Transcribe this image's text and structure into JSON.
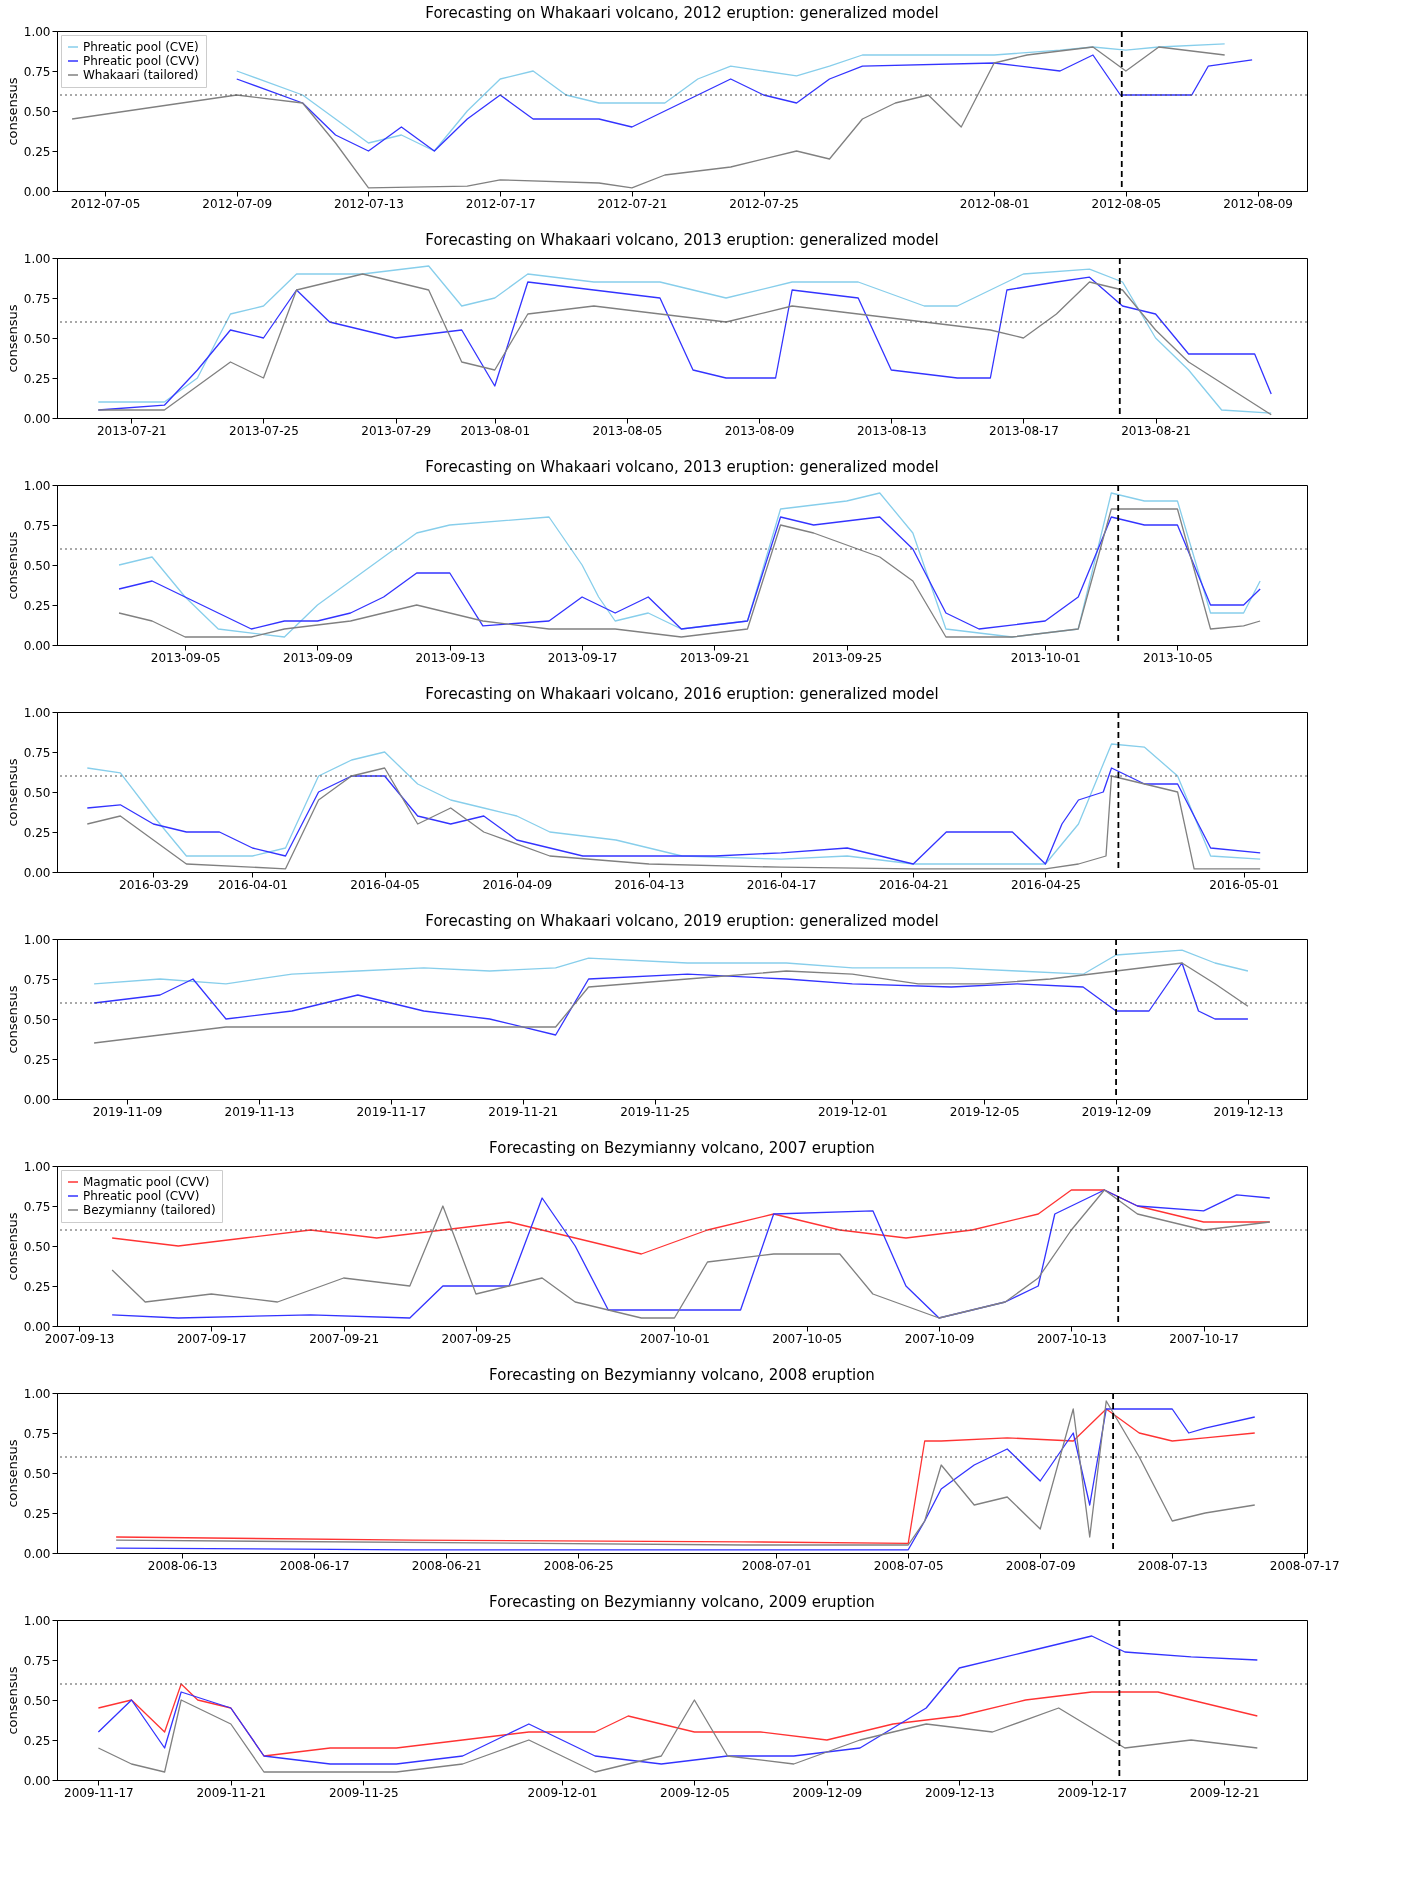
{
  "chart_data": [
    {
      "type": "line",
      "title": "Forecasting on Whakaari volcano, 2012 eruption: generalized model",
      "ylabel": "consensus",
      "xlim": [
        "2012-07-03T13:00",
        "2012-08-10T12:00"
      ],
      "xticks": [
        "2012-07-05",
        "2012-07-09",
        "2012-07-13",
        "2012-07-17",
        "2012-07-21",
        "2012-07-25",
        "2012-08-01",
        "2012-08-05",
        "2012-08-09"
      ],
      "ylim": [
        0,
        1
      ],
      "yticks": [
        {
          "value": 0,
          "label": "0.00"
        },
        {
          "value": 0.25,
          "label": "0.25"
        },
        {
          "value": 0.5,
          "label": "0.50"
        },
        {
          "value": 0.75,
          "label": "0.75"
        },
        {
          "value": 1,
          "label": "1.00"
        }
      ],
      "legend": "top left",
      "grid": false,
      "line_style": "solid",
      "ref_lines": [
        {
          "axis": "y",
          "value": 0.6,
          "color": "#555555",
          "line_style": "dotted"
        },
        {
          "axis": "x",
          "value": "2012-08-04T21:00",
          "color": "#000000",
          "line_style": "dashed"
        }
      ],
      "series": [
        {
          "name": "Phreatic pool (CVE)",
          "color": "#87ceeb",
          "x": [
            "2012-07-09",
            "2012-07-11",
            "2012-07-13",
            "2012-07-14",
            "2012-07-15",
            "2012-07-16",
            "2012-07-17",
            "2012-07-18",
            "2012-07-19",
            "2012-07-20",
            "2012-07-22",
            "2012-07-23",
            "2012-07-24",
            "2012-07-26",
            "2012-07-27",
            "2012-07-28",
            "2012-08-01",
            "2012-08-03",
            "2012-08-04",
            "2012-08-05",
            "2012-08-06",
            "2012-08-08"
          ],
          "values": [
            0.75,
            0.6,
            0.3,
            0.35,
            0.25,
            0.5,
            0.7,
            0.75,
            0.6,
            0.55,
            0.55,
            0.7,
            0.78,
            0.72,
            0.78,
            0.85,
            0.85,
            0.88,
            0.9,
            0.88,
            0.9,
            0.92
          ]
        },
        {
          "name": "Phreatic pool (CVV)",
          "color": "#3333ff",
          "x": [
            "2012-07-09",
            "2012-07-11",
            "2012-07-12",
            "2012-07-13",
            "2012-07-14",
            "2012-07-15",
            "2012-07-16",
            "2012-07-17",
            "2012-07-18",
            "2012-07-20",
            "2012-07-21",
            "2012-07-23",
            "2012-07-24",
            "2012-07-25",
            "2012-07-26",
            "2012-07-27",
            "2012-07-28",
            "2012-08-01",
            "2012-08-03",
            "2012-08-04",
            "2012-08-04T20:00",
            "2012-08-07",
            "2012-08-07T12:00",
            "2012-08-08T20:00"
          ],
          "values": [
            0.7,
            0.55,
            0.35,
            0.25,
            0.4,
            0.25,
            0.45,
            0.6,
            0.45,
            0.45,
            0.4,
            0.6,
            0.7,
            0.6,
            0.55,
            0.7,
            0.78,
            0.8,
            0.75,
            0.85,
            0.6,
            0.6,
            0.78,
            0.82
          ]
        },
        {
          "name": "Whakaari (tailored)",
          "color": "#808080",
          "x": [
            "2012-07-04",
            "2012-07-09",
            "2012-07-11",
            "2012-07-12",
            "2012-07-13",
            "2012-07-16",
            "2012-07-17",
            "2012-07-20",
            "2012-07-21",
            "2012-07-22",
            "2012-07-24",
            "2012-07-26",
            "2012-07-27",
            "2012-07-28",
            "2012-07-29",
            "2012-07-30",
            "2012-07-31",
            "2012-08-01",
            "2012-08-02",
            "2012-08-04",
            "2012-08-05",
            "2012-08-06",
            "2012-08-08"
          ],
          "values": [
            0.45,
            0.6,
            0.55,
            0.3,
            0.02,
            0.03,
            0.07,
            0.05,
            0.02,
            0.1,
            0.15,
            0.25,
            0.2,
            0.45,
            0.55,
            0.6,
            0.4,
            0.8,
            0.85,
            0.9,
            0.75,
            0.9,
            0.85
          ]
        }
      ]
    },
    {
      "type": "line",
      "title": "Forecasting on Whakaari volcano, 2013 eruption: generalized model",
      "ylabel": "consensus",
      "xlim": [
        "2013-07-18T18:00",
        "2013-08-25T14:00"
      ],
      "xticks": [
        "2013-07-21",
        "2013-07-25",
        "2013-07-29",
        "2013-08-01",
        "2013-08-05",
        "2013-08-09",
        "2013-08-13",
        "2013-08-17",
        "2013-08-21"
      ],
      "ylim": [
        0,
        1
      ],
      "yticks": [
        {
          "value": 0,
          "label": "0.00"
        },
        {
          "value": 0.25,
          "label": "0.25"
        },
        {
          "value": 0.5,
          "label": "0.50"
        },
        {
          "value": 0.75,
          "label": "0.75"
        },
        {
          "value": 1,
          "label": "1.00"
        }
      ],
      "grid": false,
      "line_style": "solid",
      "ref_lines": [
        {
          "axis": "y",
          "value": 0.6,
          "color": "#555555",
          "line_style": "dotted"
        },
        {
          "axis": "x",
          "value": "2013-08-19T22:00",
          "color": "#000000",
          "line_style": "dashed"
        }
      ],
      "series": [
        {
          "color": "#87ceeb",
          "x": [
            "2013-07-20",
            "2013-07-22",
            "2013-07-23",
            "2013-07-24",
            "2013-07-25",
            "2013-07-26",
            "2013-07-28",
            "2013-07-30",
            "2013-07-31",
            "2013-08-01",
            "2013-08-02",
            "2013-08-04",
            "2013-08-06",
            "2013-08-08",
            "2013-08-10",
            "2013-08-12",
            "2013-08-14",
            "2013-08-15",
            "2013-08-17",
            "2013-08-19",
            "2013-08-20",
            "2013-08-21",
            "2013-08-22",
            "2013-08-23",
            "2013-08-24T12:00"
          ],
          "values": [
            0.1,
            0.1,
            0.25,
            0.65,
            0.7,
            0.9,
            0.9,
            0.95,
            0.7,
            0.75,
            0.9,
            0.85,
            0.85,
            0.75,
            0.85,
            0.85,
            0.7,
            0.7,
            0.9,
            0.93,
            0.85,
            0.5,
            0.3,
            0.05,
            0.03
          ]
        },
        {
          "color": "#3333ff",
          "x": [
            "2013-07-20",
            "2013-07-22",
            "2013-07-23",
            "2013-07-24",
            "2013-07-25",
            "2013-07-26",
            "2013-07-27",
            "2013-07-29",
            "2013-07-31",
            "2013-08-01",
            "2013-08-02",
            "2013-08-04",
            "2013-08-06",
            "2013-08-07",
            "2013-08-08",
            "2013-08-09T12:00",
            "2013-08-10",
            "2013-08-12",
            "2013-08-13",
            "2013-08-15",
            "2013-08-16",
            "2013-08-16T12:00",
            "2013-08-18",
            "2013-08-19",
            "2013-08-20",
            "2013-08-21",
            "2013-08-22",
            "2013-08-24",
            "2013-08-24T12:00"
          ],
          "values": [
            0.05,
            0.08,
            0.3,
            0.55,
            0.5,
            0.8,
            0.6,
            0.5,
            0.55,
            0.2,
            0.85,
            0.8,
            0.75,
            0.3,
            0.25,
            0.25,
            0.8,
            0.75,
            0.3,
            0.25,
            0.25,
            0.8,
            0.85,
            0.88,
            0.7,
            0.65,
            0.4,
            0.4,
            0.15
          ]
        },
        {
          "color": "#808080",
          "x": [
            "2013-07-20",
            "2013-07-22",
            "2013-07-23",
            "2013-07-24",
            "2013-07-25",
            "2013-07-26",
            "2013-07-28",
            "2013-07-30",
            "2013-07-31",
            "2013-08-01",
            "2013-08-02",
            "2013-08-04",
            "2013-08-06",
            "2013-08-08",
            "2013-08-10",
            "2013-08-12",
            "2013-08-14",
            "2013-08-16",
            "2013-08-17",
            "2013-08-18",
            "2013-08-19",
            "2013-08-20",
            "2013-08-21",
            "2013-08-22",
            "2013-08-24T12:00"
          ],
          "values": [
            0.05,
            0.05,
            0.2,
            0.35,
            0.25,
            0.8,
            0.9,
            0.8,
            0.35,
            0.3,
            0.65,
            0.7,
            0.65,
            0.6,
            0.7,
            0.65,
            0.6,
            0.55,
            0.5,
            0.65,
            0.85,
            0.8,
            0.55,
            0.35,
            0.02
          ]
        }
      ]
    },
    {
      "type": "line",
      "title": "Forecasting on Whakaari volcano, 2013 eruption: generalized model",
      "ylabel": "consensus",
      "xlim": [
        "2013-09-01T03:00",
        "2013-10-08T22:00"
      ],
      "xticks": [
        "2013-09-05",
        "2013-09-09",
        "2013-09-13",
        "2013-09-17",
        "2013-09-21",
        "2013-09-25",
        "2013-10-01",
        "2013-10-05"
      ],
      "ylim": [
        0,
        1
      ],
      "yticks": [
        {
          "value": 0,
          "label": "0.00"
        },
        {
          "value": 0.25,
          "label": "0.25"
        },
        {
          "value": 0.5,
          "label": "0.50"
        },
        {
          "value": 0.75,
          "label": "0.75"
        },
        {
          "value": 1,
          "label": "1.00"
        }
      ],
      "grid": false,
      "line_style": "solid",
      "ref_lines": [
        {
          "axis": "y",
          "value": 0.6,
          "color": "#555555",
          "line_style": "dotted"
        },
        {
          "axis": "x",
          "value": "2013-10-03T05:00",
          "color": "#000000",
          "line_style": "dashed"
        }
      ],
      "series": [
        {
          "color": "#87ceeb",
          "x": [
            "2013-09-03",
            "2013-09-04",
            "2013-09-05",
            "2013-09-06",
            "2013-09-08",
            "2013-09-09",
            "2013-09-10",
            "2013-09-11",
            "2013-09-12",
            "2013-09-13",
            "2013-09-16",
            "2013-09-17",
            "2013-09-17T12:00",
            "2013-09-18",
            "2013-09-19",
            "2013-09-20",
            "2013-09-22",
            "2013-09-23",
            "2013-09-25",
            "2013-09-26",
            "2013-09-27",
            "2013-09-28",
            "2013-09-30",
            "2013-10-02",
            "2013-10-03",
            "2013-10-04",
            "2013-10-05",
            "2013-10-06",
            "2013-10-07",
            "2013-10-07T12:00"
          ],
          "values": [
            0.5,
            0.55,
            0.3,
            0.1,
            0.05,
            0.25,
            0.4,
            0.55,
            0.7,
            0.75,
            0.8,
            0.5,
            0.3,
            0.15,
            0.2,
            0.1,
            0.15,
            0.85,
            0.9,
            0.95,
            0.7,
            0.1,
            0.05,
            0.1,
            0.95,
            0.9,
            0.9,
            0.2,
            0.2,
            0.4
          ]
        },
        {
          "color": "#3333ff",
          "x": [
            "2013-09-03",
            "2013-09-04",
            "2013-09-05",
            "2013-09-06",
            "2013-09-07",
            "2013-09-08",
            "2013-09-09",
            "2013-09-10",
            "2013-09-11",
            "2013-09-12",
            "2013-09-13",
            "2013-09-14",
            "2013-09-16",
            "2013-09-17",
            "2013-09-18",
            "2013-09-19",
            "2013-09-20",
            "2013-09-22",
            "2013-09-23",
            "2013-09-24",
            "2013-09-26",
            "2013-09-27",
            "2013-09-28",
            "2013-09-29",
            "2013-10-01",
            "2013-10-02",
            "2013-10-03",
            "2013-10-04",
            "2013-10-05",
            "2013-10-06",
            "2013-10-07",
            "2013-10-07T12:00"
          ],
          "values": [
            0.35,
            0.4,
            0.3,
            0.2,
            0.1,
            0.15,
            0.15,
            0.2,
            0.3,
            0.45,
            0.45,
            0.12,
            0.15,
            0.3,
            0.2,
            0.3,
            0.1,
            0.15,
            0.8,
            0.75,
            0.8,
            0.6,
            0.2,
            0.1,
            0.15,
            0.3,
            0.8,
            0.75,
            0.75,
            0.25,
            0.25,
            0.35
          ]
        },
        {
          "color": "#808080",
          "x": [
            "2013-09-03",
            "2013-09-04",
            "2013-09-05",
            "2013-09-07",
            "2013-09-08",
            "2013-09-10",
            "2013-09-12",
            "2013-09-14",
            "2013-09-16",
            "2013-09-18",
            "2013-09-20",
            "2013-09-22",
            "2013-09-23",
            "2013-09-24",
            "2013-09-26",
            "2013-09-27",
            "2013-09-28",
            "2013-09-30",
            "2013-10-02",
            "2013-10-03",
            "2013-10-04",
            "2013-10-05",
            "2013-10-06",
            "2013-10-07",
            "2013-10-07T12:00"
          ],
          "values": [
            0.2,
            0.15,
            0.05,
            0.05,
            0.1,
            0.15,
            0.25,
            0.15,
            0.1,
            0.1,
            0.05,
            0.1,
            0.75,
            0.7,
            0.55,
            0.4,
            0.05,
            0.05,
            0.1,
            0.85,
            0.85,
            0.85,
            0.1,
            0.12,
            0.15
          ]
        }
      ]
    },
    {
      "type": "line",
      "title": "Forecasting on Whakaari volcano, 2016 eruption: generalized model",
      "ylabel": "consensus",
      "xlim": [
        "2016-03-26T02:00",
        "2016-05-02T22:00"
      ],
      "xticks": [
        "2016-03-29",
        "2016-04-01",
        "2016-04-05",
        "2016-04-09",
        "2016-04-13",
        "2016-04-17",
        "2016-04-21",
        "2016-04-25",
        "2016-05-01"
      ],
      "ylim": [
        0,
        1
      ],
      "yticks": [
        {
          "value": 0,
          "label": "0.00"
        },
        {
          "value": 0.25,
          "label": "0.25"
        },
        {
          "value": 0.5,
          "label": "0.50"
        },
        {
          "value": 0.75,
          "label": "0.75"
        },
        {
          "value": 1,
          "label": "1.00"
        }
      ],
      "grid": false,
      "line_style": "solid",
      "ref_lines": [
        {
          "axis": "y",
          "value": 0.6,
          "color": "#555555",
          "line_style": "dotted"
        },
        {
          "axis": "x",
          "value": "2016-04-27T05:00",
          "color": "#000000",
          "line_style": "dashed"
        }
      ],
      "series": [
        {
          "color": "#87ceeb",
          "x": [
            "2016-03-27",
            "2016-03-28",
            "2016-03-29",
            "2016-03-30",
            "2016-04-01",
            "2016-04-02",
            "2016-04-03",
            "2016-04-04",
            "2016-04-05",
            "2016-04-06",
            "2016-04-07",
            "2016-04-08",
            "2016-04-09",
            "2016-04-10",
            "2016-04-12",
            "2016-04-14",
            "2016-04-17",
            "2016-04-19",
            "2016-04-21",
            "2016-04-23",
            "2016-04-25",
            "2016-04-26",
            "2016-04-26T12:00",
            "2016-04-27",
            "2016-04-28",
            "2016-04-29",
            "2016-04-30",
            "2016-05-01T12:00"
          ],
          "values": [
            0.65,
            0.62,
            0.35,
            0.1,
            0.1,
            0.15,
            0.6,
            0.7,
            0.75,
            0.55,
            0.45,
            0.4,
            0.35,
            0.25,
            0.2,
            0.1,
            0.08,
            0.1,
            0.05,
            0.05,
            0.05,
            0.3,
            0.55,
            0.8,
            0.78,
            0.6,
            0.1,
            0.08
          ]
        },
        {
          "color": "#3333ff",
          "x": [
            "2016-03-27",
            "2016-03-28",
            "2016-03-29",
            "2016-03-30",
            "2016-03-31",
            "2016-04-01",
            "2016-04-02",
            "2016-04-03",
            "2016-04-04",
            "2016-04-05",
            "2016-04-06",
            "2016-04-07",
            "2016-04-08",
            "2016-04-09",
            "2016-04-11",
            "2016-04-13",
            "2016-04-15",
            "2016-04-17",
            "2016-04-19",
            "2016-04-21",
            "2016-04-22",
            "2016-04-24",
            "2016-04-25",
            "2016-04-25T12:00",
            "2016-04-26",
            "2016-04-26T18:00",
            "2016-04-27",
            "2016-04-28",
            "2016-04-29",
            "2016-04-30",
            "2016-05-01T12:00"
          ],
          "values": [
            0.4,
            0.42,
            0.3,
            0.25,
            0.25,
            0.15,
            0.1,
            0.5,
            0.6,
            0.6,
            0.35,
            0.3,
            0.35,
            0.2,
            0.1,
            0.1,
            0.1,
            0.12,
            0.15,
            0.05,
            0.25,
            0.25,
            0.05,
            0.3,
            0.45,
            0.5,
            0.65,
            0.55,
            0.55,
            0.15,
            0.12
          ]
        },
        {
          "color": "#808080",
          "x": [
            "2016-03-27",
            "2016-03-28",
            "2016-03-29",
            "2016-03-30",
            "2016-04-02",
            "2016-04-03",
            "2016-04-04",
            "2016-04-05",
            "2016-04-06",
            "2016-04-07",
            "2016-04-08",
            "2016-04-10",
            "2016-04-13",
            "2016-04-17",
            "2016-04-21",
            "2016-04-25",
            "2016-04-26",
            "2016-04-26T20:00",
            "2016-04-27",
            "2016-04-28",
            "2016-04-29",
            "2016-04-29T12:00",
            "2016-05-01T12:00"
          ],
          "values": [
            0.3,
            0.35,
            0.2,
            0.05,
            0.02,
            0.45,
            0.6,
            0.65,
            0.3,
            0.4,
            0.25,
            0.1,
            0.05,
            0.03,
            0.02,
            0.02,
            0.05,
            0.1,
            0.6,
            0.55,
            0.5,
            0.02,
            0.02
          ]
        }
      ]
    },
    {
      "type": "line",
      "title": "Forecasting on Whakaari volcano, 2019 eruption: generalized model",
      "ylabel": "consensus",
      "xlim": [
        "2019-11-06T21:00",
        "2019-12-14T19:00"
      ],
      "xticks": [
        "2019-11-09",
        "2019-11-13",
        "2019-11-17",
        "2019-11-21",
        "2019-11-25",
        "2019-12-01",
        "2019-12-05",
        "2019-12-09",
        "2019-12-13"
      ],
      "ylim": [
        0,
        1
      ],
      "yticks": [
        {
          "value": 0,
          "label": "0.00"
        },
        {
          "value": 0.25,
          "label": "0.25"
        },
        {
          "value": 0.5,
          "label": "0.50"
        },
        {
          "value": 0.75,
          "label": "0.75"
        },
        {
          "value": 1,
          "label": "1.00"
        }
      ],
      "grid": false,
      "line_style": "solid",
      "ref_lines": [
        {
          "axis": "y",
          "value": 0.6,
          "color": "#555555",
          "line_style": "dotted"
        },
        {
          "axis": "x",
          "value": "2019-12-09",
          "color": "#000000",
          "line_style": "dashed"
        }
      ],
      "series": [
        {
          "color": "#87ceeb",
          "x": [
            "2019-11-08",
            "2019-11-10",
            "2019-11-12",
            "2019-11-14",
            "2019-11-16",
            "2019-11-18",
            "2019-11-20",
            "2019-11-22",
            "2019-11-23",
            "2019-11-26",
            "2019-11-29",
            "2019-12-01",
            "2019-12-04",
            "2019-12-06",
            "2019-12-08",
            "2019-12-09",
            "2019-12-11",
            "2019-12-12",
            "2019-12-13"
          ],
          "values": [
            0.72,
            0.75,
            0.72,
            0.78,
            0.8,
            0.82,
            0.8,
            0.82,
            0.88,
            0.85,
            0.85,
            0.82,
            0.82,
            0.8,
            0.78,
            0.9,
            0.93,
            0.85,
            0.8
          ]
        },
        {
          "color": "#3333ff",
          "x": [
            "2019-11-08",
            "2019-11-10",
            "2019-11-11",
            "2019-11-12",
            "2019-11-14",
            "2019-11-16",
            "2019-11-18",
            "2019-11-20",
            "2019-11-22",
            "2019-11-23",
            "2019-11-26",
            "2019-11-29",
            "2019-12-01",
            "2019-12-04",
            "2019-12-06",
            "2019-12-08",
            "2019-12-09",
            "2019-12-10",
            "2019-12-11",
            "2019-12-11T12:00",
            "2019-12-12",
            "2019-12-13"
          ],
          "values": [
            0.6,
            0.65,
            0.75,
            0.5,
            0.55,
            0.65,
            0.55,
            0.5,
            0.4,
            0.75,
            0.78,
            0.75,
            0.72,
            0.7,
            0.72,
            0.7,
            0.55,
            0.55,
            0.85,
            0.55,
            0.5,
            0.5
          ]
        },
        {
          "color": "#808080",
          "x": [
            "2019-11-08",
            "2019-11-10",
            "2019-11-12",
            "2019-11-14",
            "2019-11-16",
            "2019-11-18",
            "2019-11-20",
            "2019-11-22",
            "2019-11-23",
            "2019-11-26",
            "2019-11-29",
            "2019-12-01",
            "2019-12-03",
            "2019-12-05",
            "2019-12-07",
            "2019-12-09",
            "2019-12-11",
            "2019-12-12",
            "2019-12-13"
          ],
          "values": [
            0.35,
            0.4,
            0.45,
            0.45,
            0.45,
            0.45,
            0.45,
            0.45,
            0.7,
            0.75,
            0.8,
            0.78,
            0.72,
            0.72,
            0.75,
            0.8,
            0.85,
            0.72,
            0.58
          ]
        }
      ]
    },
    {
      "type": "line",
      "title": "Forecasting on Bezymianny volcano, 2007 eruption",
      "ylabel": "consensus",
      "xlim": [
        "2007-09-12T08:00",
        "2007-10-20T03:00"
      ],
      "xticks": [
        "2007-09-13",
        "2007-09-17",
        "2007-09-21",
        "2007-09-25",
        "2007-10-01",
        "2007-10-05",
        "2007-10-09",
        "2007-10-13",
        "2007-10-17"
      ],
      "ylim": [
        0,
        1
      ],
      "yticks": [
        {
          "value": 0,
          "label": "0.00"
        },
        {
          "value": 0.25,
          "label": "0.25"
        },
        {
          "value": 0.5,
          "label": "0.50"
        },
        {
          "value": 0.75,
          "label": "0.75"
        },
        {
          "value": 1,
          "label": "1.00"
        }
      ],
      "legend": "top left",
      "grid": false,
      "line_style": "solid",
      "ref_lines": [
        {
          "axis": "y",
          "value": 0.6,
          "color": "#555555",
          "line_style": "dotted"
        },
        {
          "axis": "x",
          "value": "2007-10-14T10:00",
          "color": "#000000",
          "line_style": "dashed"
        }
      ],
      "series": [
        {
          "name": "Magmatic pool (CVV)",
          "color": "#ff3333",
          "x": [
            "2007-09-14",
            "2007-09-16",
            "2007-09-18",
            "2007-09-20",
            "2007-09-22",
            "2007-09-24",
            "2007-09-26",
            "2007-09-28",
            "2007-09-30",
            "2007-10-02",
            "2007-10-04",
            "2007-10-06",
            "2007-10-08",
            "2007-10-10",
            "2007-10-12",
            "2007-10-13",
            "2007-10-14",
            "2007-10-15",
            "2007-10-17",
            "2007-10-19"
          ],
          "values": [
            0.55,
            0.5,
            0.55,
            0.6,
            0.55,
            0.6,
            0.65,
            0.55,
            0.45,
            0.6,
            0.7,
            0.6,
            0.55,
            0.6,
            0.7,
            0.85,
            0.85,
            0.75,
            0.65,
            0.65
          ]
        },
        {
          "name": "Phreatic pool (CVV)",
          "color": "#3333ff",
          "x": [
            "2007-09-14",
            "2007-09-16",
            "2007-09-20",
            "2007-09-23",
            "2007-09-24",
            "2007-09-26",
            "2007-09-27",
            "2007-09-28",
            "2007-09-29",
            "2007-10-01",
            "2007-10-03",
            "2007-10-04",
            "2007-10-07",
            "2007-10-08",
            "2007-10-09",
            "2007-10-11",
            "2007-10-12",
            "2007-10-12T12:00",
            "2007-10-14",
            "2007-10-15",
            "2007-10-17",
            "2007-10-18",
            "2007-10-19"
          ],
          "values": [
            0.07,
            0.05,
            0.07,
            0.05,
            0.25,
            0.25,
            0.8,
            0.5,
            0.1,
            0.1,
            0.1,
            0.7,
            0.72,
            0.25,
            0.05,
            0.15,
            0.25,
            0.7,
            0.85,
            0.75,
            0.72,
            0.82,
            0.8
          ]
        },
        {
          "name": "Bezymianny (tailored)",
          "color": "#808080",
          "x": [
            "2007-09-14",
            "2007-09-15",
            "2007-09-17",
            "2007-09-19",
            "2007-09-21",
            "2007-09-23",
            "2007-09-24",
            "2007-09-25",
            "2007-09-27",
            "2007-09-28",
            "2007-09-30",
            "2007-10-01",
            "2007-10-02",
            "2007-10-04",
            "2007-10-06",
            "2007-10-07",
            "2007-10-09",
            "2007-10-11",
            "2007-10-12",
            "2007-10-13",
            "2007-10-14",
            "2007-10-15",
            "2007-10-17",
            "2007-10-19"
          ],
          "values": [
            0.35,
            0.15,
            0.2,
            0.15,
            0.3,
            0.25,
            0.75,
            0.2,
            0.3,
            0.15,
            0.05,
            0.05,
            0.4,
            0.45,
            0.45,
            0.2,
            0.05,
            0.15,
            0.3,
            0.6,
            0.85,
            0.7,
            0.6,
            0.65
          ]
        }
      ]
    },
    {
      "type": "line",
      "title": "Forecasting on Bezymianny volcano, 2008 eruption",
      "ylabel": "consensus",
      "xlim": [
        "2008-06-09T05:00",
        "2008-07-17T02:00"
      ],
      "xticks": [
        "2008-06-13",
        "2008-06-17",
        "2008-06-21",
        "2008-06-25",
        "2008-07-01",
        "2008-07-05",
        "2008-07-09",
        "2008-07-13",
        "2008-07-17"
      ],
      "ylim": [
        0,
        1
      ],
      "yticks": [
        {
          "value": 0,
          "label": "0.00"
        },
        {
          "value": 0.25,
          "label": "0.25"
        },
        {
          "value": 0.5,
          "label": "0.50"
        },
        {
          "value": 0.75,
          "label": "0.75"
        },
        {
          "value": 1,
          "label": "1.00"
        }
      ],
      "grid": false,
      "line_style": "solid",
      "ref_lines": [
        {
          "axis": "y",
          "value": 0.6,
          "color": "#555555",
          "line_style": "dotted"
        },
        {
          "axis": "x",
          "value": "2008-07-11T05:00",
          "color": "#000000",
          "line_style": "dashed"
        }
      ],
      "series": [
        {
          "color": "#ff3333",
          "x": [
            "2008-06-11",
            "2008-06-20",
            "2008-06-30",
            "2008-07-05",
            "2008-07-05T12:00",
            "2008-07-06",
            "2008-07-08",
            "2008-07-10",
            "2008-07-11",
            "2008-07-12",
            "2008-07-13",
            "2008-07-14",
            "2008-07-15T12:00"
          ],
          "values": [
            0.1,
            0.08,
            0.07,
            0.06,
            0.7,
            0.7,
            0.72,
            0.7,
            0.9,
            0.75,
            0.7,
            0.72,
            0.75
          ]
        },
        {
          "color": "#3333ff",
          "x": [
            "2008-06-11",
            "2008-06-20",
            "2008-06-30",
            "2008-07-05",
            "2008-07-05T12:00",
            "2008-07-06",
            "2008-07-07",
            "2008-07-08",
            "2008-07-09",
            "2008-07-10",
            "2008-07-10T12:00",
            "2008-07-11",
            "2008-07-13",
            "2008-07-13T12:00",
            "2008-07-14",
            "2008-07-15T12:00"
          ],
          "values": [
            0.03,
            0.02,
            0.02,
            0.02,
            0.2,
            0.4,
            0.55,
            0.65,
            0.45,
            0.75,
            0.3,
            0.9,
            0.9,
            0.75,
            0.78,
            0.85
          ]
        },
        {
          "color": "#808080",
          "x": [
            "2008-06-11",
            "2008-06-30",
            "2008-07-05",
            "2008-07-05T12:00",
            "2008-07-06",
            "2008-07-07",
            "2008-07-08",
            "2008-07-09",
            "2008-07-10",
            "2008-07-10T12:00",
            "2008-07-11",
            "2008-07-12",
            "2008-07-13",
            "2008-07-14",
            "2008-07-15T12:00"
          ],
          "values": [
            0.08,
            0.05,
            0.05,
            0.2,
            0.55,
            0.3,
            0.35,
            0.15,
            0.9,
            0.1,
            0.95,
            0.6,
            0.2,
            0.25,
            0.3
          ]
        }
      ]
    },
    {
      "type": "line",
      "title": "Forecasting on Bezymianny volcano, 2009 eruption",
      "ylabel": "consensus",
      "xlim": [
        "2009-11-15T18:00",
        "2009-12-23T12:00"
      ],
      "xticks": [
        "2009-11-17",
        "2009-11-21",
        "2009-11-25",
        "2009-12-01",
        "2009-12-05",
        "2009-12-09",
        "2009-12-13",
        "2009-12-17",
        "2009-12-21"
      ],
      "ylim": [
        0,
        1
      ],
      "yticks": [
        {
          "value": 0,
          "label": "0.00"
        },
        {
          "value": 0.25,
          "label": "0.25"
        },
        {
          "value": 0.5,
          "label": "0.50"
        },
        {
          "value": 0.75,
          "label": "0.75"
        },
        {
          "value": 1,
          "label": "1.00"
        }
      ],
      "grid": false,
      "line_style": "solid",
      "ref_lines": [
        {
          "axis": "y",
          "value": 0.6,
          "color": "#555555",
          "line_style": "dotted"
        },
        {
          "axis": "x",
          "value": "2009-12-17T20:00",
          "color": "#000000",
          "line_style": "dashed"
        }
      ],
      "series": [
        {
          "color": "#ff3333",
          "x": [
            "2009-11-17",
            "2009-11-18",
            "2009-11-19",
            "2009-11-19T12:00",
            "2009-11-20",
            "2009-11-21",
            "2009-11-22",
            "2009-11-24",
            "2009-11-26",
            "2009-11-28",
            "2009-11-30",
            "2009-12-02",
            "2009-12-03",
            "2009-12-05",
            "2009-12-07",
            "2009-12-09",
            "2009-12-11",
            "2009-12-13",
            "2009-12-15",
            "2009-12-17",
            "2009-12-19",
            "2009-12-21",
            "2009-12-22"
          ],
          "values": [
            0.45,
            0.5,
            0.3,
            0.6,
            0.5,
            0.45,
            0.15,
            0.2,
            0.2,
            0.25,
            0.3,
            0.3,
            0.4,
            0.3,
            0.3,
            0.25,
            0.35,
            0.4,
            0.5,
            0.55,
            0.55,
            0.45,
            0.4
          ]
        },
        {
          "color": "#3333ff",
          "x": [
            "2009-11-17",
            "2009-11-18",
            "2009-11-19",
            "2009-11-19T12:00",
            "2009-11-21",
            "2009-11-22",
            "2009-11-24",
            "2009-11-26",
            "2009-11-28",
            "2009-11-30",
            "2009-12-02",
            "2009-12-04",
            "2009-12-06",
            "2009-12-08",
            "2009-12-10",
            "2009-12-12",
            "2009-12-13",
            "2009-12-15",
            "2009-12-17",
            "2009-12-18",
            "2009-12-20",
            "2009-12-22"
          ],
          "values": [
            0.3,
            0.5,
            0.2,
            0.55,
            0.45,
            0.15,
            0.1,
            0.1,
            0.15,
            0.35,
            0.15,
            0.1,
            0.15,
            0.15,
            0.2,
            0.45,
            0.7,
            0.8,
            0.9,
            0.8,
            0.77,
            0.75
          ]
        },
        {
          "color": "#808080",
          "x": [
            "2009-11-17",
            "2009-11-18",
            "2009-11-19",
            "2009-11-19T12:00",
            "2009-11-21",
            "2009-11-22",
            "2009-11-24",
            "2009-11-26",
            "2009-11-28",
            "2009-11-30",
            "2009-12-02",
            "2009-12-04",
            "2009-12-05",
            "2009-12-06",
            "2009-12-08",
            "2009-12-10",
            "2009-12-12",
            "2009-12-14",
            "2009-12-16",
            "2009-12-18",
            "2009-12-20",
            "2009-12-22"
          ],
          "values": [
            0.2,
            0.1,
            0.05,
            0.5,
            0.35,
            0.05,
            0.05,
            0.05,
            0.1,
            0.25,
            0.05,
            0.15,
            0.5,
            0.15,
            0.1,
            0.25,
            0.35,
            0.3,
            0.45,
            0.2,
            0.25,
            0.2
          ]
        }
      ]
    }
  ]
}
